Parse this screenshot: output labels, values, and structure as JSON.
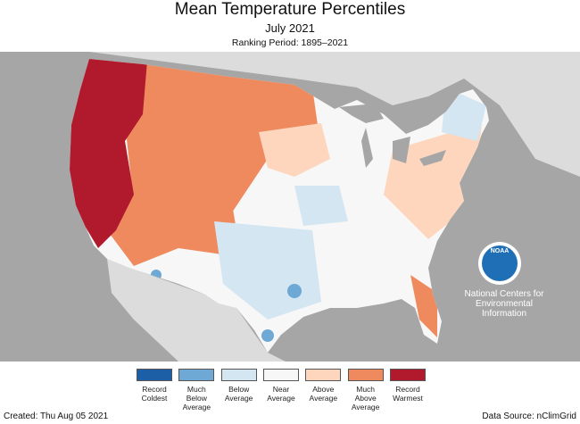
{
  "header": {
    "title": "Mean Temperature Percentiles",
    "subtitle": "July 2021",
    "period": "Ranking Period: 1895–2021"
  },
  "legend": {
    "items": [
      {
        "label": "Record Coldest",
        "color": "#1d5fa6"
      },
      {
        "label": "Much Below Average",
        "color": "#6ea8d5"
      },
      {
        "label": "Below Average",
        "color": "#d4e6f2"
      },
      {
        "label": "Near Average",
        "color": "#f7f7f7"
      },
      {
        "label": "Above Average",
        "color": "#fdd6bd"
      },
      {
        "label": "Much Above Average",
        "color": "#ef8a5e"
      },
      {
        "label": "Record Warmest",
        "color": "#b11a2c"
      }
    ]
  },
  "logo": {
    "text": "NOAA",
    "caption": [
      "National Centers for",
      "Environmental",
      "Information"
    ]
  },
  "footer": {
    "created": "Created: Thu Aug 05 2021",
    "source": "Data Source: nClimGrid"
  }
}
